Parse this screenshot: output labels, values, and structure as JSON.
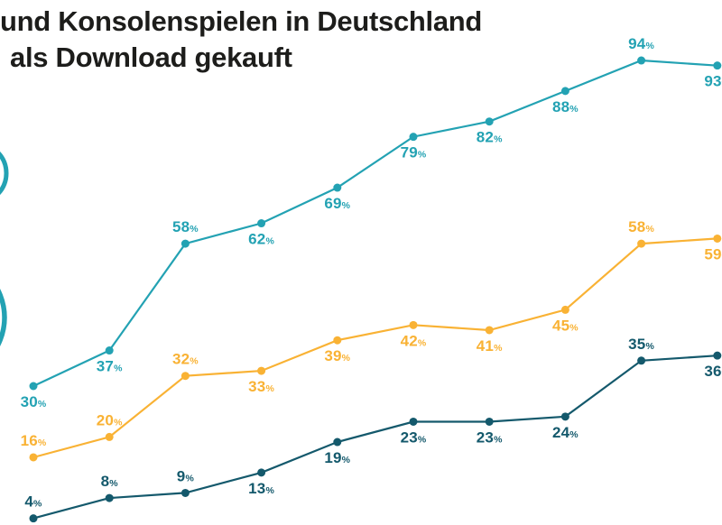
{
  "page": {
    "background": "#ffffff"
  },
  "title": {
    "line1": "und Konsolenspielen in Deutschland",
    "line2": "als Download gekauft",
    "color": "#1d1d1b"
  },
  "decoration": {
    "color": "#23a2b3"
  },
  "chart_data": {
    "type": "line",
    "title": "und Konsolenspielen in Deutschland als Download gekauft",
    "unit": "%",
    "ylim": [
      0,
      100
    ],
    "grid": false,
    "legend": "none",
    "points_per_series": 10,
    "series": [
      {
        "name": "teal-top-line",
        "color": "#23a2b3",
        "values": [
          30,
          37,
          58,
          62,
          69,
          79,
          82,
          88,
          94,
          93
        ],
        "label_positions": [
          "below",
          "below",
          "above",
          "below",
          "below",
          "below",
          "below",
          "below",
          "above",
          "below"
        ]
      },
      {
        "name": "amber-middle-line",
        "color": "#f9b234",
        "values": [
          16,
          20,
          32,
          33,
          39,
          42,
          41,
          45,
          58,
          59
        ],
        "label_positions": [
          "above",
          "above",
          "above",
          "below",
          "below",
          "below",
          "below",
          "below",
          "above",
          "below"
        ]
      },
      {
        "name": "petrol-bottom-line",
        "color": "#14596c",
        "values": [
          4,
          8,
          9,
          13,
          19,
          23,
          23,
          24,
          35,
          36
        ],
        "label_positions": [
          "above",
          "above",
          "above",
          "below",
          "below",
          "below",
          "below",
          "below",
          "above",
          "below"
        ]
      }
    ]
  }
}
